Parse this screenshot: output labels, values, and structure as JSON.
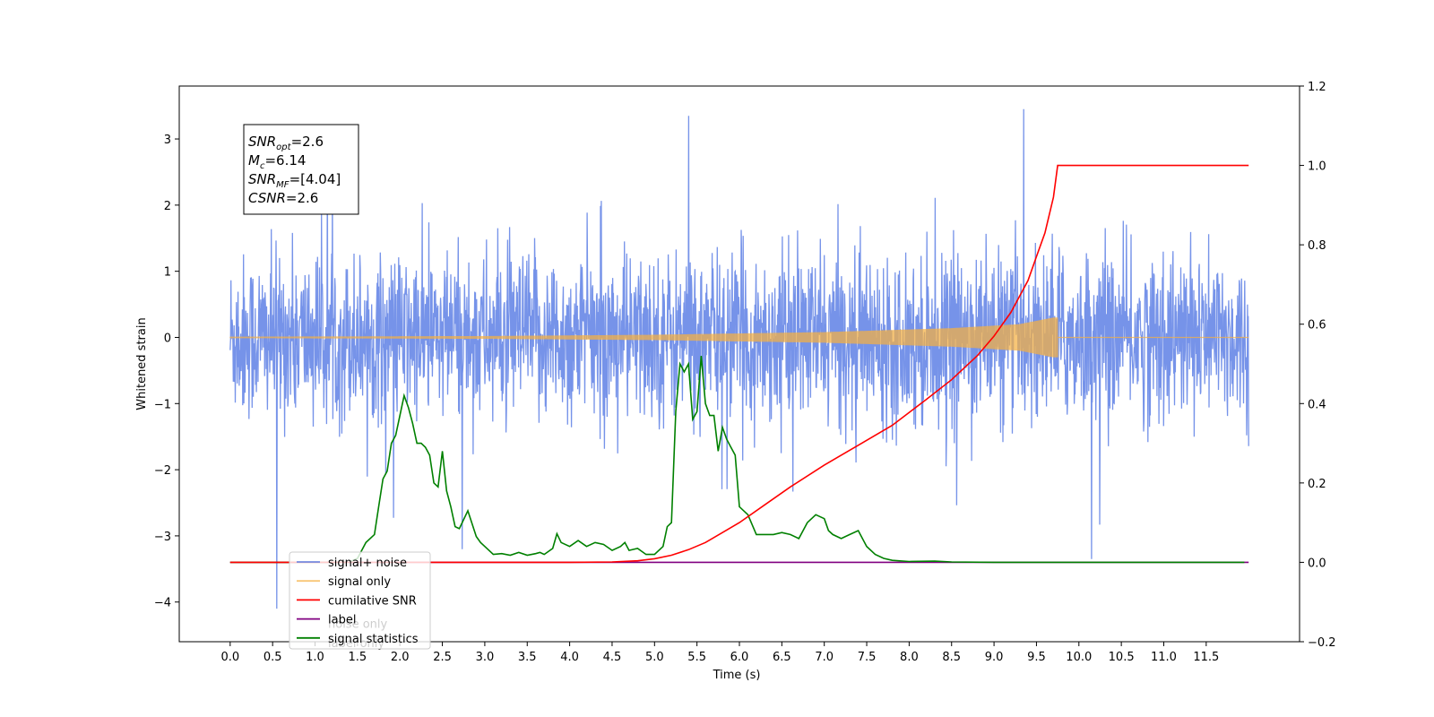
{
  "chart_data": {
    "type": "line",
    "title": "",
    "xlabel": "Time (s)",
    "ylabel": "Whitened strain",
    "y2label": "",
    "xlim": [
      -0.6,
      12.6
    ],
    "ylim": [
      -4.6,
      3.8
    ],
    "y2lim": [
      -0.2,
      1.2
    ],
    "x_ticks": [
      0.0,
      0.5,
      1.0,
      1.5,
      2.0,
      2.5,
      3.0,
      3.5,
      4.0,
      4.5,
      5.0,
      5.5,
      6.0,
      6.5,
      7.0,
      7.5,
      8.0,
      8.5,
      9.0,
      9.5,
      10.0,
      10.5,
      11.0,
      11.5
    ],
    "x_tick_labels": [
      "0.0",
      "0.5",
      "1.0",
      "1.5",
      "2.0",
      "2.5",
      "3.0",
      "3.5",
      "4.0",
      "4.5",
      "5.0",
      "5.5",
      "6.0",
      "6.5",
      "7.0",
      "7.5",
      "8.0",
      "8.5",
      "9.0",
      "9.5",
      "10.0",
      "10.5",
      "11.0",
      "11.5"
    ],
    "y_ticks": [
      -4,
      -3,
      -2,
      -1,
      0,
      1,
      2,
      3
    ],
    "y_tick_labels": [
      "−4",
      "−3",
      "−2",
      "−1",
      "0",
      "1",
      "2",
      "3"
    ],
    "y2_ticks": [
      -0.2,
      0.0,
      0.2,
      0.4,
      0.6,
      0.8,
      1.0,
      1.2
    ],
    "y2_tick_labels": [
      "−0.2",
      "0.0",
      "0.2",
      "0.4",
      "0.6",
      "0.8",
      "1.0",
      "1.2"
    ],
    "grid": false,
    "legend_placement": "lower-left",
    "annotation": [
      {
        "base": "SNR",
        "sub": "opt",
        "rest": "=2.6"
      },
      {
        "base": "M",
        "sub": "c",
        "rest": "=6.14"
      },
      {
        "base": "SNR",
        "sub": "MF",
        "rest": "=[4.04]"
      },
      {
        "base": "CSNR",
        "sub": "",
        "rest": "=2.6"
      }
    ],
    "series": [
      {
        "name": "signal+ noise",
        "axis": "left",
        "color": "#4169e1",
        "kind": "noise",
        "x_range": [
          0.0,
          12.0
        ],
        "typical_band": [
          -1.8,
          1.8
        ],
        "notable_peaks": [
          [
            0.55,
            -4.1
          ],
          [
            5.4,
            3.35
          ],
          [
            9.35,
            3.45
          ],
          [
            10.15,
            -3.35
          ]
        ]
      },
      {
        "name": "signal only",
        "axis": "left",
        "color": "#f5b041",
        "kind": "chirp",
        "x_range": [
          0.0,
          9.75
        ],
        "envelope": [
          [
            0.0,
            0.01
          ],
          [
            3.0,
            0.02
          ],
          [
            5.0,
            0.04
          ],
          [
            7.0,
            0.08
          ],
          [
            8.5,
            0.14
          ],
          [
            9.3,
            0.2
          ],
          [
            9.7,
            0.3
          ],
          [
            9.75,
            0.3
          ]
        ]
      },
      {
        "name": "cumilative SNR",
        "axis": "right",
        "color": "#ff0000",
        "x": [
          0.0,
          4.0,
          4.5,
          4.8,
          5.0,
          5.2,
          5.4,
          5.6,
          5.8,
          6.0,
          6.3,
          6.6,
          7.0,
          7.4,
          7.8,
          8.2,
          8.5,
          8.8,
          9.0,
          9.2,
          9.4,
          9.5,
          9.6,
          9.7,
          9.75,
          12.0
        ],
        "y": [
          0.0,
          0.0,
          0.001,
          0.004,
          0.009,
          0.018,
          0.032,
          0.05,
          0.075,
          0.1,
          0.145,
          0.19,
          0.245,
          0.295,
          0.345,
          0.41,
          0.46,
          0.52,
          0.57,
          0.63,
          0.71,
          0.77,
          0.83,
          0.92,
          1.0,
          1.0
        ]
      },
      {
        "name": "label",
        "axis": "right",
        "color": "#800080",
        "x": [
          0.0,
          12.0
        ],
        "y": [
          0.0,
          0.0
        ]
      },
      {
        "name": "signal statistics",
        "axis": "right",
        "color": "#008000",
        "x": [
          0.0,
          1.4,
          1.5,
          1.6,
          1.7,
          1.75,
          1.8,
          1.85,
          1.9,
          1.95,
          2.0,
          2.05,
          2.1,
          2.15,
          2.2,
          2.25,
          2.3,
          2.35,
          2.4,
          2.45,
          2.5,
          2.55,
          2.6,
          2.65,
          2.7,
          2.8,
          2.9,
          2.95,
          3.0,
          3.1,
          3.2,
          3.3,
          3.4,
          3.5,
          3.6,
          3.65,
          3.7,
          3.8,
          3.85,
          3.9,
          4.0,
          4.1,
          4.2,
          4.3,
          4.4,
          4.5,
          4.6,
          4.65,
          4.7,
          4.8,
          4.9,
          5.0,
          5.1,
          5.15,
          5.2,
          5.25,
          5.3,
          5.35,
          5.4,
          5.45,
          5.5,
          5.55,
          5.6,
          5.65,
          5.7,
          5.75,
          5.8,
          5.85,
          5.9,
          5.95,
          6.0,
          6.1,
          6.2,
          6.25,
          6.3,
          6.4,
          6.5,
          6.6,
          6.7,
          6.8,
          6.9,
          7.0,
          7.05,
          7.1,
          7.2,
          7.3,
          7.4,
          7.5,
          7.6,
          7.7,
          7.8,
          8.0,
          8.3,
          8.5,
          9.0,
          10.0,
          11.0,
          11.95
        ],
        "y": [
          0.0,
          0.0,
          0.01,
          0.05,
          0.07,
          0.14,
          0.21,
          0.23,
          0.3,
          0.32,
          0.37,
          0.42,
          0.39,
          0.35,
          0.3,
          0.3,
          0.29,
          0.27,
          0.2,
          0.19,
          0.28,
          0.18,
          0.14,
          0.09,
          0.085,
          0.13,
          0.065,
          0.05,
          0.04,
          0.02,
          0.022,
          0.018,
          0.025,
          0.018,
          0.022,
          0.025,
          0.02,
          0.035,
          0.072,
          0.05,
          0.04,
          0.055,
          0.04,
          0.05,
          0.045,
          0.03,
          0.04,
          0.05,
          0.03,
          0.035,
          0.02,
          0.02,
          0.04,
          0.09,
          0.1,
          0.38,
          0.5,
          0.48,
          0.5,
          0.36,
          0.38,
          0.52,
          0.4,
          0.37,
          0.37,
          0.28,
          0.34,
          0.31,
          0.29,
          0.27,
          0.14,
          0.12,
          0.07,
          0.07,
          0.07,
          0.07,
          0.075,
          0.07,
          0.06,
          0.1,
          0.12,
          0.11,
          0.08,
          0.07,
          0.06,
          0.07,
          0.08,
          0.04,
          0.02,
          0.01,
          0.005,
          0.002,
          0.003,
          0.001,
          0.0,
          0.0,
          0.0,
          0.0
        ]
      },
      {
        "name": "label only",
        "axis": "right",
        "color": "#800080",
        "legend_only": true
      },
      {
        "name": "noise only",
        "axis": "right",
        "color": "#008000",
        "legend_only": true
      }
    ],
    "legend_order": [
      "signal+ noise",
      "signal only",
      "cumilative SNR",
      "label",
      "signal statistics"
    ],
    "legend_hidden_behind": [
      "noise only",
      "label only"
    ]
  }
}
